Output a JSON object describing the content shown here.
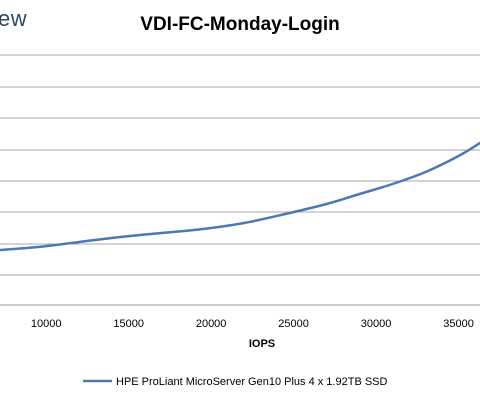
{
  "watermark": "ew",
  "chart_data": {
    "type": "line",
    "title": "VDI-FC-Monday-Login",
    "xlabel": "IOPS",
    "ylabel": "",
    "x_ticks": [
      10000,
      15000,
      20000,
      25000,
      30000,
      35000
    ],
    "xlim": [
      7200,
      36300
    ],
    "grid": true,
    "legend": "bottom",
    "series": [
      {
        "name": "HPE ProLiant MicroServer Gen10 Plus 4 x 1.92TB SSD",
        "color": "#4a7ab5",
        "points": [
          [
            7200,
            250
          ],
          [
            9500,
            247
          ],
          [
            12000,
            242
          ],
          [
            14500,
            237
          ],
          [
            17000,
            233
          ],
          [
            19500,
            229
          ],
          [
            22000,
            223
          ],
          [
            24500,
            214
          ],
          [
            27000,
            204
          ],
          [
            29000,
            194
          ],
          [
            31000,
            184
          ],
          [
            33000,
            172
          ],
          [
            35000,
            156
          ],
          [
            36300,
            143
          ]
        ]
      }
    ]
  }
}
